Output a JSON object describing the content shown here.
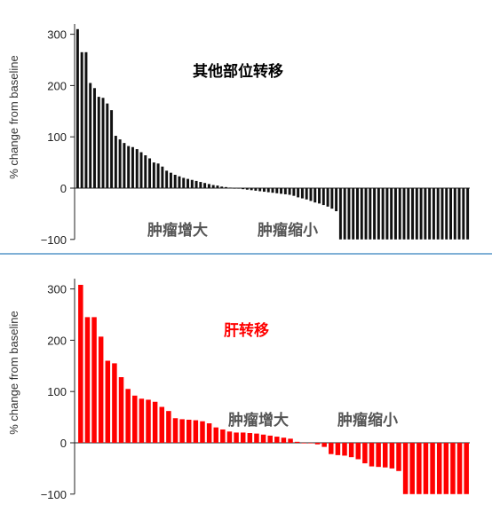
{
  "chart_data": [
    {
      "type": "bar",
      "title": "其他部位转移",
      "title_color": "#000000",
      "ylabel": "% change from baseline",
      "ylim": [
        -100,
        320
      ],
      "yticks": [
        "300",
        "200",
        "100",
        "0",
        "−100"
      ],
      "bar_color": "#111111",
      "annotations": {
        "increase": "肿瘤增大",
        "decrease": "肿瘤缩小"
      },
      "values": [
        310,
        265,
        265,
        205,
        195,
        178,
        176,
        165,
        152,
        102,
        95,
        88,
        82,
        80,
        76,
        70,
        64,
        58,
        50,
        48,
        42,
        34,
        30,
        26,
        23,
        20,
        18,
        16,
        14,
        12,
        10,
        8,
        6,
        5,
        3,
        2,
        1,
        0,
        -1,
        -2,
        -3,
        -4,
        -5,
        -6,
        -7,
        -8,
        -9,
        -10,
        -11,
        -12,
        -13,
        -15,
        -18,
        -20,
        -22,
        -25,
        -28,
        -30,
        -33,
        -36,
        -40,
        -45,
        -100,
        -100,
        -100,
        -100,
        -100,
        -100,
        -100,
        -100,
        -100,
        -100,
        -100,
        -100,
        -100,
        -100,
        -100,
        -100,
        -100,
        -100,
        -100,
        -100,
        -100,
        -100,
        -100,
        -100,
        -100,
        -100,
        -100,
        -100,
        -100,
        -100,
        -100
      ]
    },
    {
      "type": "bar",
      "title": "肝转移",
      "title_color": "#ff0000",
      "ylabel": "% change from baseline",
      "ylim": [
        -100,
        320
      ],
      "yticks": [
        "300",
        "200",
        "100",
        "0",
        "−100"
      ],
      "bar_color": "#ff0000",
      "annotations": {
        "increase": "肿瘤增大",
        "decrease": "肿瘤缩小"
      },
      "values": [
        308,
        245,
        245,
        207,
        160,
        155,
        128,
        105,
        92,
        86,
        84,
        80,
        70,
        62,
        48,
        46,
        45,
        44,
        42,
        38,
        30,
        26,
        22,
        20,
        20,
        19,
        18,
        16,
        14,
        12,
        10,
        8,
        2,
        0,
        0,
        -3,
        -8,
        -22,
        -24,
        -25,
        -28,
        -32,
        -40,
        -46,
        -47,
        -48,
        -50,
        -55,
        -100,
        -100,
        -100,
        -100,
        -100,
        -100,
        -100,
        -100,
        -100,
        -100
      ]
    }
  ]
}
